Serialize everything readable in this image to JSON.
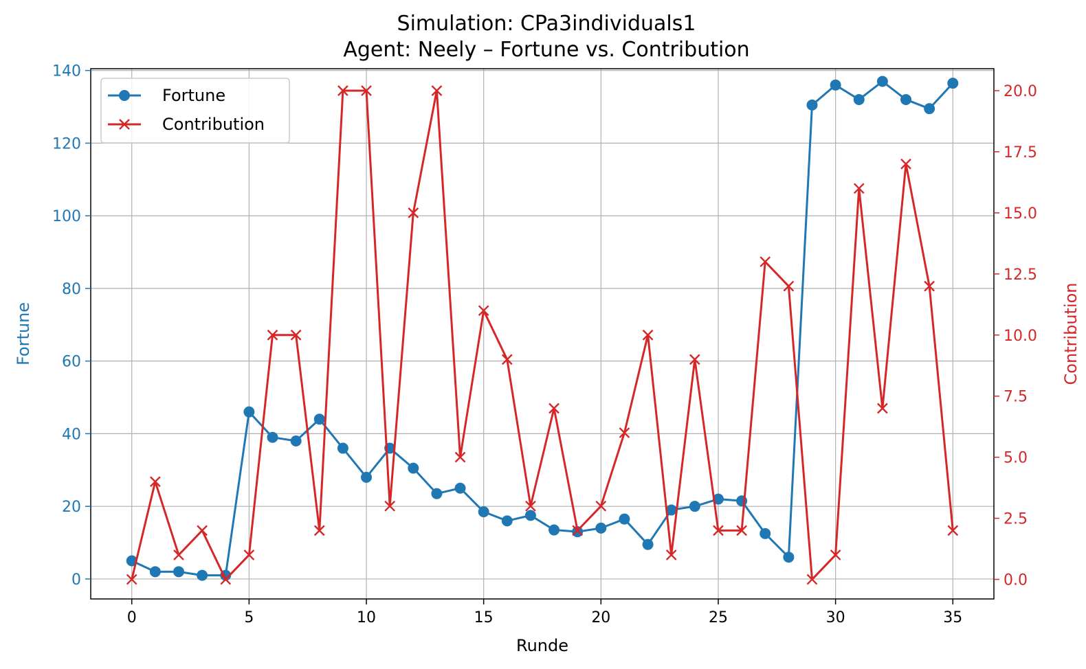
{
  "chart_data": {
    "type": "line",
    "title": "Simulation: CPa3individuals1",
    "subtitle": "Agent: Neely – Fortune vs. Contribution",
    "xlabel": "Runde",
    "ylabel": "Fortune",
    "ylabel_right": "Contribution",
    "xlim": [
      -1.75,
      36.75
    ],
    "ylim": [
      -5.5,
      140.5
    ],
    "ylim_right": [
      -0.8,
      20.9
    ],
    "xticks": [
      0,
      5,
      10,
      15,
      20,
      25,
      30,
      35
    ],
    "yticks": [
      0,
      20,
      40,
      60,
      80,
      100,
      120,
      140
    ],
    "yticks_right": [
      "0.0",
      "2.5",
      "5.0",
      "7.5",
      "10.0",
      "12.5",
      "15.0",
      "17.5",
      "20.0"
    ],
    "grid": true,
    "legend_position": "upper-left",
    "x": [
      0,
      1,
      2,
      3,
      4,
      5,
      6,
      7,
      8,
      9,
      10,
      11,
      12,
      13,
      14,
      15,
      16,
      17,
      18,
      19,
      20,
      21,
      22,
      23,
      24,
      25,
      26,
      27,
      28,
      29,
      30,
      31,
      32,
      33,
      34,
      35
    ],
    "series": [
      {
        "name": "Fortune",
        "axis": "left",
        "color": "#1f77b4",
        "marker": "circle",
        "values": [
          5,
          2,
          2,
          1,
          1,
          46,
          39,
          38,
          44,
          36,
          28,
          36,
          30.5,
          23.5,
          25,
          18.5,
          16,
          17.5,
          13.5,
          13,
          14,
          16.5,
          9.5,
          19,
          20,
          22,
          21.5,
          12.5,
          6,
          130.5,
          136,
          132,
          137,
          132,
          129.5,
          136.5
        ]
      },
      {
        "name": "Contribution",
        "axis": "right",
        "color": "#d62728",
        "marker": "x",
        "values": [
          0,
          4,
          1,
          2,
          0,
          1,
          10,
          10,
          2,
          20,
          20,
          3,
          15,
          20,
          5,
          11,
          9,
          3,
          7,
          2,
          3,
          6,
          10,
          1,
          9,
          2,
          2,
          13,
          12,
          0,
          1,
          16,
          7,
          17,
          12,
          2
        ]
      }
    ]
  }
}
